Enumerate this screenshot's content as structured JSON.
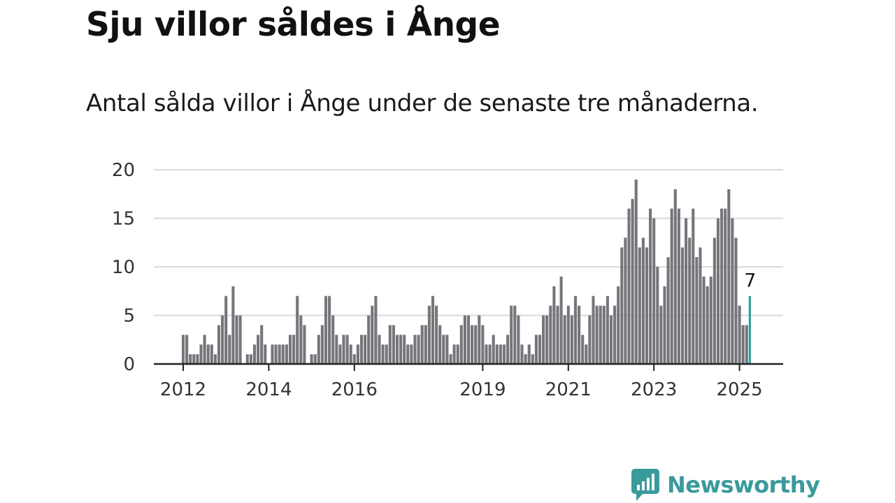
{
  "title": "Sju villor såldes i Ånge",
  "subtitle": "Antal sålda villor i Ånge under de senaste tre månaderna.",
  "brand": {
    "name": "Newsworthy",
    "logo_icon": "bar-chart-speech-bubble-icon",
    "color": "#3a9a9c"
  },
  "colors": {
    "bar": "#76757b",
    "highlight": "#17a3a0",
    "grid": "#d9d9d9",
    "axis": "#222222"
  },
  "chart_data": {
    "type": "bar",
    "title": "",
    "xlabel": "",
    "ylabel": "",
    "ylim": [
      0,
      20
    ],
    "yticks": [
      0,
      5,
      10,
      15,
      20
    ],
    "grid": "horizontal",
    "x_tick_labels": [
      "2012",
      "2014",
      "2016",
      "2019",
      "2021",
      "2023",
      "2025"
    ],
    "x_ticks_at_index": [
      0,
      24,
      48,
      84,
      108,
      132,
      156
    ],
    "annotation": {
      "label": "7",
      "index": 159
    },
    "values": [
      3,
      3,
      1,
      1,
      1,
      2,
      3,
      2,
      2,
      1,
      4,
      5,
      7,
      3,
      8,
      5,
      5,
      0,
      1,
      1,
      2,
      3,
      4,
      2,
      0,
      2,
      2,
      2,
      2,
      2,
      3,
      3,
      7,
      5,
      4,
      0,
      1,
      1,
      3,
      4,
      7,
      7,
      5,
      3,
      2,
      3,
      3,
      2,
      1,
      2,
      3,
      3,
      5,
      6,
      7,
      3,
      2,
      2,
      4,
      4,
      3,
      3,
      3,
      2,
      2,
      3,
      3,
      4,
      4,
      6,
      7,
      6,
      4,
      3,
      3,
      1,
      2,
      2,
      4,
      5,
      5,
      4,
      4,
      5,
      4,
      2,
      2,
      3,
      2,
      2,
      2,
      3,
      6,
      6,
      5,
      2,
      1,
      2,
      1,
      3,
      3,
      5,
      5,
      6,
      8,
      6,
      9,
      5,
      6,
      5,
      7,
      6,
      3,
      2,
      5,
      7,
      6,
      6,
      6,
      7,
      5,
      6,
      8,
      12,
      13,
      16,
      17,
      19,
      12,
      13,
      12,
      16,
      15,
      10,
      6,
      8,
      11,
      16,
      18,
      16,
      12,
      15,
      13,
      16,
      11,
      12,
      9,
      8,
      9,
      13,
      15,
      16,
      16,
      18,
      15,
      13,
      6,
      4,
      4,
      7
    ],
    "highlight_index": 159
  }
}
